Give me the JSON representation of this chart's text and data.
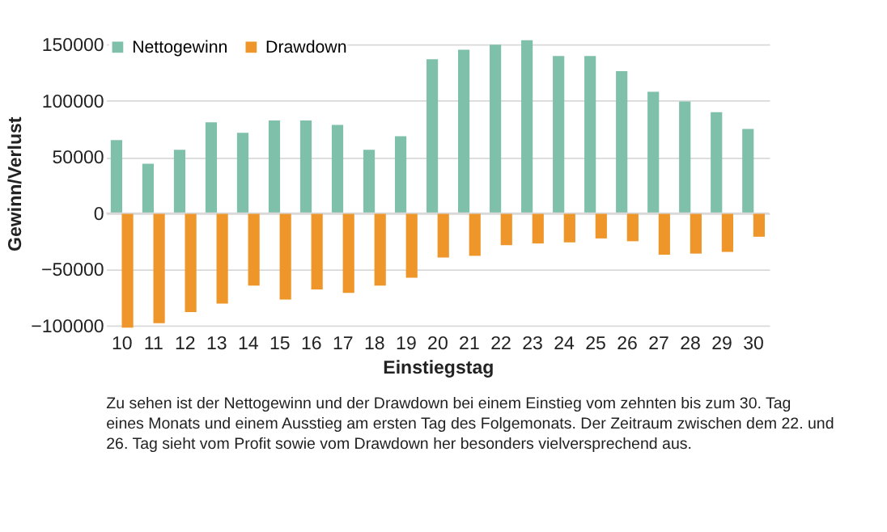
{
  "chart_data": {
    "type": "bar",
    "xlabel": "Einstiegstag",
    "ylabel": "Gewinn/Verlust",
    "categories": [
      "10",
      "11",
      "12",
      "13",
      "14",
      "15",
      "16",
      "17",
      "18",
      "19",
      "20",
      "21",
      "22",
      "23",
      "24",
      "25",
      "26",
      "27",
      "28",
      "29",
      "30"
    ],
    "series": [
      {
        "name": "Nettogewinn",
        "color": "#7fc0ab",
        "values": [
          65000,
          44000,
          56500,
          81000,
          71500,
          82500,
          82500,
          78500,
          56500,
          68500,
          137000,
          145500,
          150000,
          154000,
          140000,
          140000,
          126500,
          108000,
          99500,
          90000,
          75000
        ]
      },
      {
        "name": "Drawdown",
        "color": "#ef962b",
        "values": [
          -102000,
          -98000,
          -88000,
          -80500,
          -64500,
          -77000,
          -68000,
          -71000,
          -64500,
          -57500,
          -39500,
          -38000,
          -28500,
          -27000,
          -26000,
          -22500,
          -25000,
          -37000,
          -36000,
          -34500,
          -21000
        ]
      }
    ],
    "ylim": [
      -105000,
      158000
    ],
    "yticks": [
      -100000,
      -50000,
      0,
      50000,
      100000,
      150000
    ],
    "grid": "y",
    "legend": "top left",
    "annotations": [
      "Zu sehen ist der Nettogewinn und der Drawdown bei einem Einstieg vom zehnten bis zum 30. Tag eines Monats und einem Ausstieg am ersten Tag des Folgemonats. Der Zeitraum zwischen dem 22. und 26. Tag sieht vom Profit sowie vom Drawdown her besonders vielversprechend aus."
    ]
  }
}
